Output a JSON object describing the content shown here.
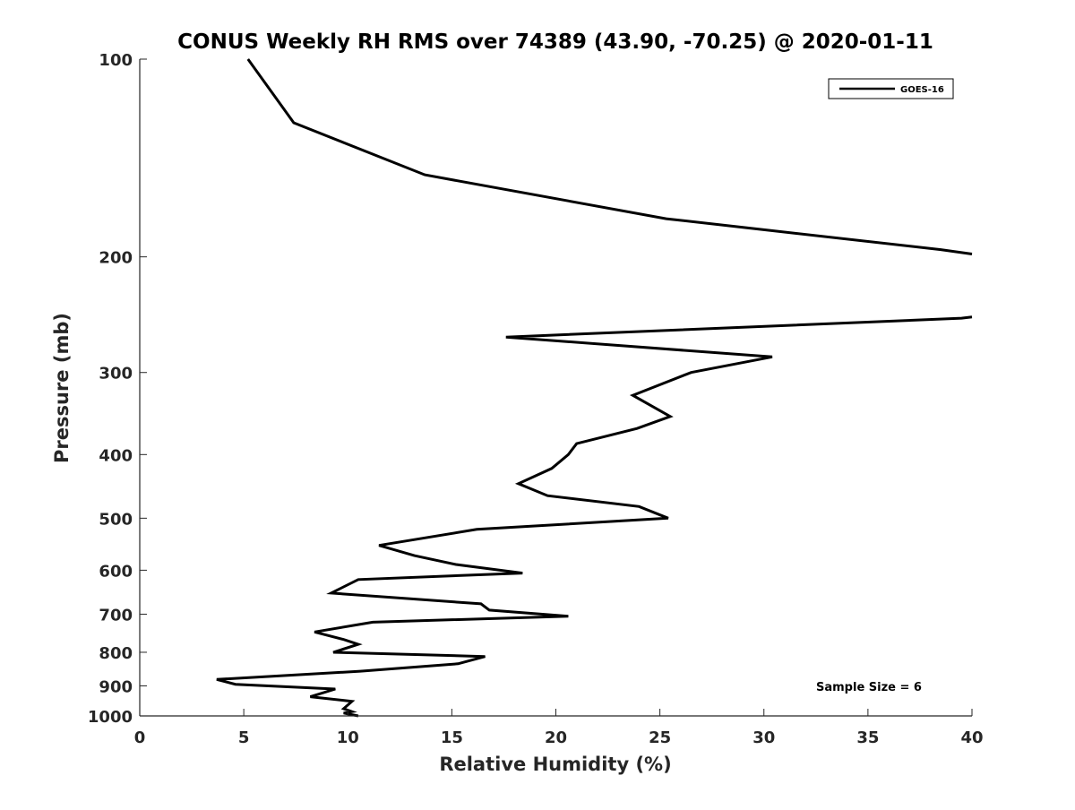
{
  "chart_data": {
    "type": "line",
    "title": "CONUS Weekly RH RMS over 74389 (43.90, -70.25) @ 2020-01-11",
    "xlabel": "Relative Humidity (%)",
    "ylabel": "Pressure (mb)",
    "xlim": [
      0,
      40
    ],
    "ylim": [
      100,
      1000
    ],
    "y_scale": "log",
    "y_reversed": true,
    "x_ticks": [
      0,
      5,
      10,
      15,
      20,
      25,
      30,
      35,
      40
    ],
    "x_tick_labels": [
      "0",
      "5",
      "10",
      "15",
      "20",
      "25",
      "30",
      "35",
      "40"
    ],
    "y_ticks": [
      100,
      200,
      300,
      400,
      500,
      600,
      700,
      800,
      900,
      1000
    ],
    "y_tick_labels": [
      "100",
      "200",
      "300",
      "400",
      "500",
      "600",
      "700",
      "800",
      "900",
      "1000"
    ],
    "grid": false,
    "legend_position": "top-right",
    "annotation": "Sample Size = 6",
    "series": [
      {
        "name": "GOES-16",
        "color": "#000000",
        "segments": [
          [
            [
              5.2,
              100
            ],
            [
              7.4,
              125
            ],
            [
              13.7,
              150
            ],
            [
              25.3,
              175
            ],
            [
              38.5,
              195
            ],
            [
              40.0,
              198
            ]
          ],
          [
            [
              40.0,
              247
            ],
            [
              39.5,
              248
            ],
            [
              17.6,
              265
            ],
            [
              30.4,
              284
            ],
            [
              26.5,
              300
            ],
            [
              23.7,
              325
            ],
            [
              25.5,
              350
            ],
            [
              23.9,
              365
            ],
            [
              21.0,
              385
            ],
            [
              20.6,
              400
            ],
            [
              19.8,
              420
            ],
            [
              18.2,
              443
            ],
            [
              19.6,
              462
            ],
            [
              24.0,
              480
            ],
            [
              25.4,
              500
            ],
            [
              16.2,
              520
            ],
            [
              11.5,
              550
            ],
            [
              13.2,
              570
            ],
            [
              15.2,
              588
            ],
            [
              18.4,
              606
            ],
            [
              10.5,
              620
            ],
            [
              9.2,
              650
            ],
            [
              16.4,
              675
            ],
            [
              16.8,
              690
            ],
            [
              20.6,
              705
            ],
            [
              11.2,
              720
            ],
            [
              8.4,
              745
            ],
            [
              9.8,
              765
            ],
            [
              10.5,
              778
            ],
            [
              9.3,
              800
            ],
            [
              16.6,
              812
            ],
            [
              15.3,
              833
            ],
            [
              10.6,
              855
            ],
            [
              3.7,
              880
            ],
            [
              4.6,
              895
            ],
            [
              9.4,
              910
            ],
            [
              8.2,
              935
            ],
            [
              10.2,
              950
            ],
            [
              9.8,
              975
            ],
            [
              10.2,
              985
            ],
            [
              9.8,
              990
            ],
            [
              10.5,
              1000
            ]
          ]
        ]
      }
    ]
  }
}
